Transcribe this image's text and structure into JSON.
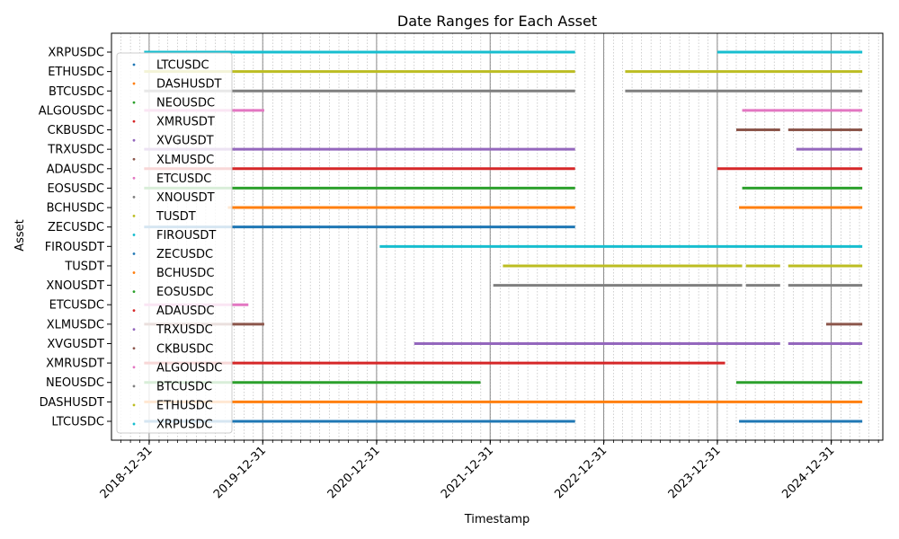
{
  "chart_data": {
    "type": "timeline",
    "title": "Date Ranges for Each Asset",
    "xlabel": "Timestamp",
    "ylabel": "Asset",
    "xlim": [
      "2018-09-01",
      "2025-06-15"
    ],
    "x_ticks": [
      "2018-12-31",
      "2019-12-31",
      "2020-12-31",
      "2021-12-31",
      "2022-12-31",
      "2023-12-31",
      "2024-12-31"
    ],
    "grid": true,
    "legend_position": "upper-left",
    "assets": [
      {
        "name": "LTCUSDC",
        "color": "#1f77b4",
        "ranges": [
          [
            "2018-12-15",
            "2022-09-30"
          ],
          [
            "2024-03-10",
            "2025-04-10"
          ]
        ]
      },
      {
        "name": "DASHUSDT",
        "color": "#ff7f0e",
        "ranges": [
          [
            "2018-12-15",
            "2025-04-10"
          ]
        ]
      },
      {
        "name": "NEOUSDC",
        "color": "#2ca02c",
        "ranges": [
          [
            "2018-12-15",
            "2021-11-30"
          ],
          [
            "2024-03-01",
            "2025-04-10"
          ]
        ]
      },
      {
        "name": "XMRUSDT",
        "color": "#d62728",
        "ranges": [
          [
            "2018-12-15",
            "2024-01-25"
          ]
        ]
      },
      {
        "name": "XVGUSDT",
        "color": "#9467bd",
        "ranges": [
          [
            "2021-05-01",
            "2024-07-20"
          ],
          [
            "2024-08-15",
            "2025-04-10"
          ]
        ]
      },
      {
        "name": "XLMUSDC",
        "color": "#8c564b",
        "ranges": [
          [
            "2018-12-15",
            "2020-01-05"
          ],
          [
            "2024-12-15",
            "2025-04-10"
          ]
        ]
      },
      {
        "name": "ETCUSDC",
        "color": "#e377c2",
        "ranges": [
          [
            "2018-12-15",
            "2019-11-15"
          ]
        ]
      },
      {
        "name": "XNOUSDT",
        "color": "#7f7f7f",
        "ranges": [
          [
            "2022-01-10",
            "2024-03-20"
          ],
          [
            "2024-04-01",
            "2024-07-20"
          ],
          [
            "2024-08-15",
            "2025-04-10"
          ]
        ]
      },
      {
        "name": "TUSDT",
        "color": "#bcbd22",
        "ranges": [
          [
            "2022-02-10",
            "2024-03-20"
          ],
          [
            "2024-04-01",
            "2024-07-20"
          ],
          [
            "2024-08-15",
            "2025-04-10"
          ]
        ]
      },
      {
        "name": "FIROUSDT",
        "color": "#17becf",
        "ranges": [
          [
            "2021-01-10",
            "2025-04-10"
          ]
        ]
      },
      {
        "name": "ZECUSDC",
        "color": "#1f77b4",
        "ranges": [
          [
            "2018-12-15",
            "2022-09-30"
          ]
        ]
      },
      {
        "name": "BCHUSDC",
        "color": "#ff7f0e",
        "ranges": [
          [
            "2019-09-10",
            "2022-09-30"
          ],
          [
            "2024-03-10",
            "2025-04-10"
          ]
        ]
      },
      {
        "name": "EOSUSDC",
        "color": "#2ca02c",
        "ranges": [
          [
            "2018-12-15",
            "2022-09-30"
          ],
          [
            "2024-03-20",
            "2025-04-10"
          ]
        ]
      },
      {
        "name": "ADAUSDC",
        "color": "#d62728",
        "ranges": [
          [
            "2018-12-15",
            "2022-09-30"
          ],
          [
            "2023-12-31",
            "2025-04-10"
          ]
        ]
      },
      {
        "name": "TRXUSDC",
        "color": "#9467bd",
        "ranges": [
          [
            "2018-12-15",
            "2022-09-30"
          ],
          [
            "2024-09-10",
            "2025-04-10"
          ]
        ]
      },
      {
        "name": "CKBUSDC",
        "color": "#8c564b",
        "ranges": [
          [
            "2024-03-01",
            "2024-07-20"
          ],
          [
            "2024-08-15",
            "2025-04-10"
          ]
        ]
      },
      {
        "name": "ALGOUSDC",
        "color": "#e377c2",
        "ranges": [
          [
            "2018-12-15",
            "2020-01-05"
          ],
          [
            "2024-03-20",
            "2025-04-10"
          ]
        ]
      },
      {
        "name": "BTCUSDC",
        "color": "#7f7f7f",
        "ranges": [
          [
            "2018-12-15",
            "2022-09-30"
          ],
          [
            "2023-03-10",
            "2025-04-10"
          ]
        ]
      },
      {
        "name": "ETHUSDC",
        "color": "#bcbd22",
        "ranges": [
          [
            "2018-12-15",
            "2022-09-30"
          ],
          [
            "2023-03-10",
            "2025-04-10"
          ]
        ]
      },
      {
        "name": "XRPUSDC",
        "color": "#17becf",
        "ranges": [
          [
            "2018-12-15",
            "2022-09-30"
          ],
          [
            "2023-12-31",
            "2025-04-10"
          ]
        ]
      }
    ]
  }
}
